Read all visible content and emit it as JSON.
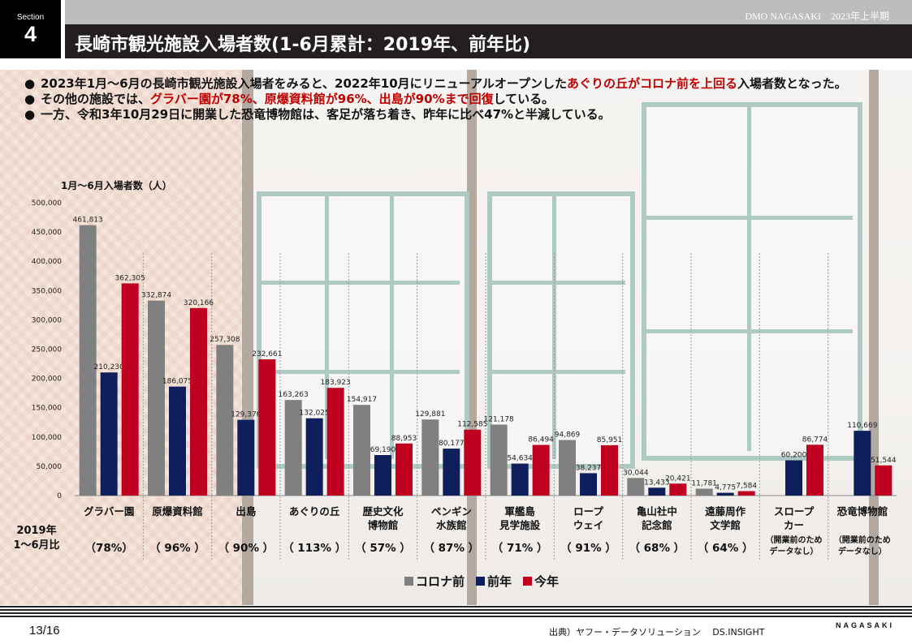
{
  "header": {
    "section_label": "Section",
    "section_number": "4",
    "top_right": "DMO NAGASAKI　2023年上半期",
    "title": "長崎市観光施設入場者数(1-6月累計：2019年、前年比)"
  },
  "bullets": [
    {
      "parts": [
        {
          "text": "2023年1月～6月の長崎市観光施設入場者をみると、2022年10月にリニューアルオープンした",
          "hl": false
        },
        {
          "text": "あぐりの丘がコロナ前を上回る",
          "hl": true
        },
        {
          "text": "入場者数となった。",
          "hl": false
        }
      ]
    },
    {
      "parts": [
        {
          "text": "その他の施設では、",
          "hl": false
        },
        {
          "text": "グラバー園が78%、原爆資料館が96%、出島が90%まで回復",
          "hl": true
        },
        {
          "text": "している。",
          "hl": false
        }
      ]
    },
    {
      "parts": [
        {
          "text": "一方、令和3年10月29日に開業した恐竜博物館は、客足が落ち着き、昨年に比べ47%と半減している。",
          "hl": false
        }
      ]
    }
  ],
  "bullet_glyph": "●",
  "chart_data": {
    "type": "bar",
    "ylabel": "1月～6月入場者数（人）",
    "ylim": [
      0,
      500000
    ],
    "yticks": [
      "0",
      "50,000",
      "100,000",
      "150,000",
      "200,000",
      "250,000",
      "300,000",
      "350,000",
      "400,000",
      "450,000",
      "500,000"
    ],
    "categories": [
      [
        "グラバー園"
      ],
      [
        "原爆資料館"
      ],
      [
        "出島"
      ],
      [
        "あぐりの丘"
      ],
      [
        "歴史文化",
        "博物館"
      ],
      [
        "ペンギン",
        "水族館"
      ],
      [
        "軍艦島",
        "見学施設"
      ],
      [
        "ロープ",
        "ウェイ"
      ],
      [
        "亀山社中",
        "記念館"
      ],
      [
        "遠藤周作",
        "文学館"
      ],
      [
        "スロープ",
        "カー"
      ],
      [
        "恐竜博物館"
      ]
    ],
    "series": [
      {
        "name": "コロナ前",
        "color": "#808080",
        "values": [
          461813,
          332874,
          257308,
          163263,
          154917,
          129881,
          121178,
          94869,
          30044,
          11781,
          null,
          null
        ],
        "labels": [
          "461,813",
          "332,874",
          "257,308",
          "163,263",
          "154,917",
          "129,881",
          "121,178",
          "94,869",
          "30,044",
          "11,781",
          "",
          ""
        ]
      },
      {
        "name": "前年",
        "color": "#0f1f5c",
        "values": [
          210230,
          186075,
          129376,
          132025,
          69190,
          80177,
          54634,
          38237,
          13433,
          4775,
          60200,
          110669
        ],
        "labels": [
          "210,230",
          "186,075",
          "129,376",
          "132,025",
          "69,190",
          "80,177",
          "54,634",
          "38,237",
          "13,433",
          "4,775",
          "60,200",
          "110,669"
        ]
      },
      {
        "name": "今年",
        "color": "#c00020",
        "values": [
          362305,
          320166,
          232661,
          183923,
          88953,
          112585,
          86494,
          85951,
          20421,
          7584,
          86774,
          51544
        ],
        "labels": [
          "362,305",
          "320,166",
          "232,661",
          "183,923",
          "88,953",
          "112,585",
          "86,494",
          "85,951",
          "20,421",
          "7,584",
          "86,774",
          "51,544"
        ]
      }
    ],
    "row_label": [
      "2019年",
      "1～6月比"
    ],
    "ratios": [
      "（78%）",
      "（ 96% ）",
      "（ 90% ）",
      "（ 113% ）",
      "（ 57% ）",
      "（ 87% ）",
      "（ 71% ）",
      "（ 91% ）",
      "（ 68% ）",
      "（ 64% ）",
      "",
      ""
    ],
    "notes": [
      "",
      "",
      "",
      "",
      "",
      "",
      "",
      "",
      "",
      "",
      [
        "（開業前のため",
        "データなし）"
      ],
      [
        "（開業前のため",
        "データなし）"
      ]
    ],
    "legend": [
      "コロナ前",
      "前年",
      "今年"
    ],
    "grid": false
  },
  "footer": {
    "page": "13/16",
    "source": "出典）ヤフー・データソリューション　 DS.INSIGHT",
    "brand": "NAGASAKI"
  }
}
